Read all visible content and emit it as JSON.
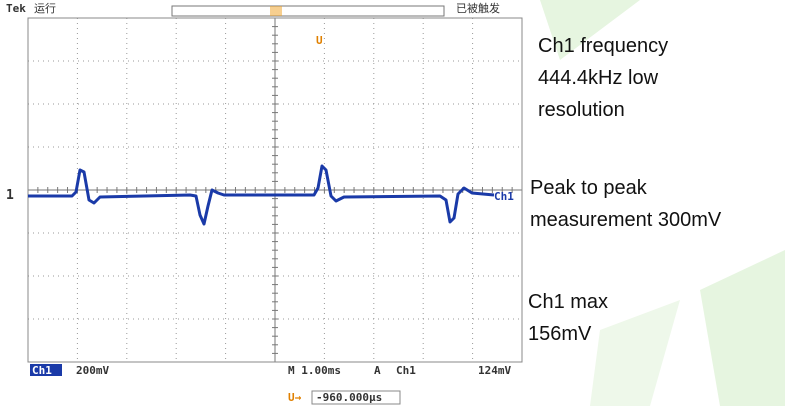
{
  "scope": {
    "brand": "Tek",
    "status": "运行",
    "trigger_state": "已被触发",
    "trigger_marker": "U",
    "channel_marker": "1",
    "channel_edge_label": "Ch1",
    "bottom_bar": {
      "channel": "Ch1",
      "scale": "200mV",
      "timebase": "M 1.00ms",
      "mode": "A",
      "trigger_channel": "Ch1",
      "trigger_level": "124mV"
    },
    "position_marker": "U→",
    "position_readout": "-960.000µs"
  },
  "annotations": [
    {
      "lines": [
        "Ch1 frequency",
        "444.4kHz low",
        "resolution"
      ]
    },
    {
      "lines": [
        "Peak to peak",
        "measurement 300mV"
      ]
    },
    {
      "lines": [
        "Ch1 max",
        "156mV"
      ]
    }
  ]
}
